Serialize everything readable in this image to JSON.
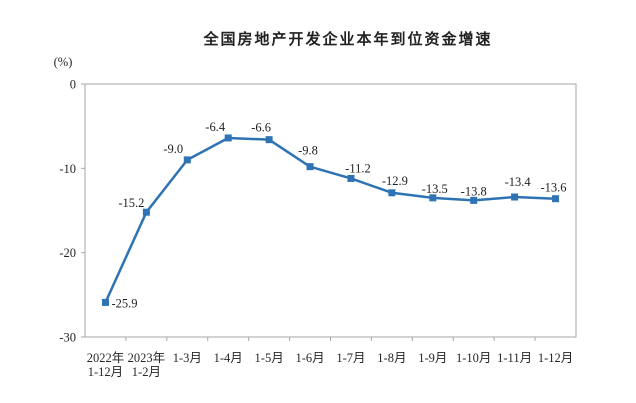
{
  "title": "全国房地产开发企业本年到位资金增速",
  "chart_data": {
    "type": "line",
    "title": "全国房地产开发企业本年到位资金增速",
    "xlabel": "",
    "ylabel": "(%)",
    "ylim": [
      -30,
      0
    ],
    "yticks": [
      0,
      -10,
      -20,
      -30
    ],
    "grid": false,
    "legend": "none",
    "categories": [
      [
        "2022年",
        "1-12月"
      ],
      [
        "2023年",
        "1-2月"
      ],
      [
        "1-3月"
      ],
      [
        "1-4月"
      ],
      [
        "1-5月"
      ],
      [
        "1-6月"
      ],
      [
        "1-7月"
      ],
      [
        "1-8月"
      ],
      [
        "1-9月"
      ],
      [
        "1-10月"
      ],
      [
        "1-11月"
      ],
      [
        "1-12月"
      ]
    ],
    "values": [
      -25.9,
      -15.2,
      -9.0,
      -6.4,
      -6.6,
      -9.8,
      -11.2,
      -12.9,
      -13.5,
      -13.8,
      -13.4,
      -13.6
    ],
    "data_labels": [
      "-25.9",
      "-15.2",
      "-9.0",
      "-6.4",
      "-6.6",
      "-9.8",
      "-11.2",
      "-12.9",
      "-13.5",
      "-13.8",
      "-13.4",
      "-13.6"
    ],
    "colors": {
      "line": "#2E74B5",
      "marker": "#2E74B5",
      "plot_border": "#A6A6A6",
      "tick": "#A6A6A6",
      "text": "#262626"
    }
  }
}
